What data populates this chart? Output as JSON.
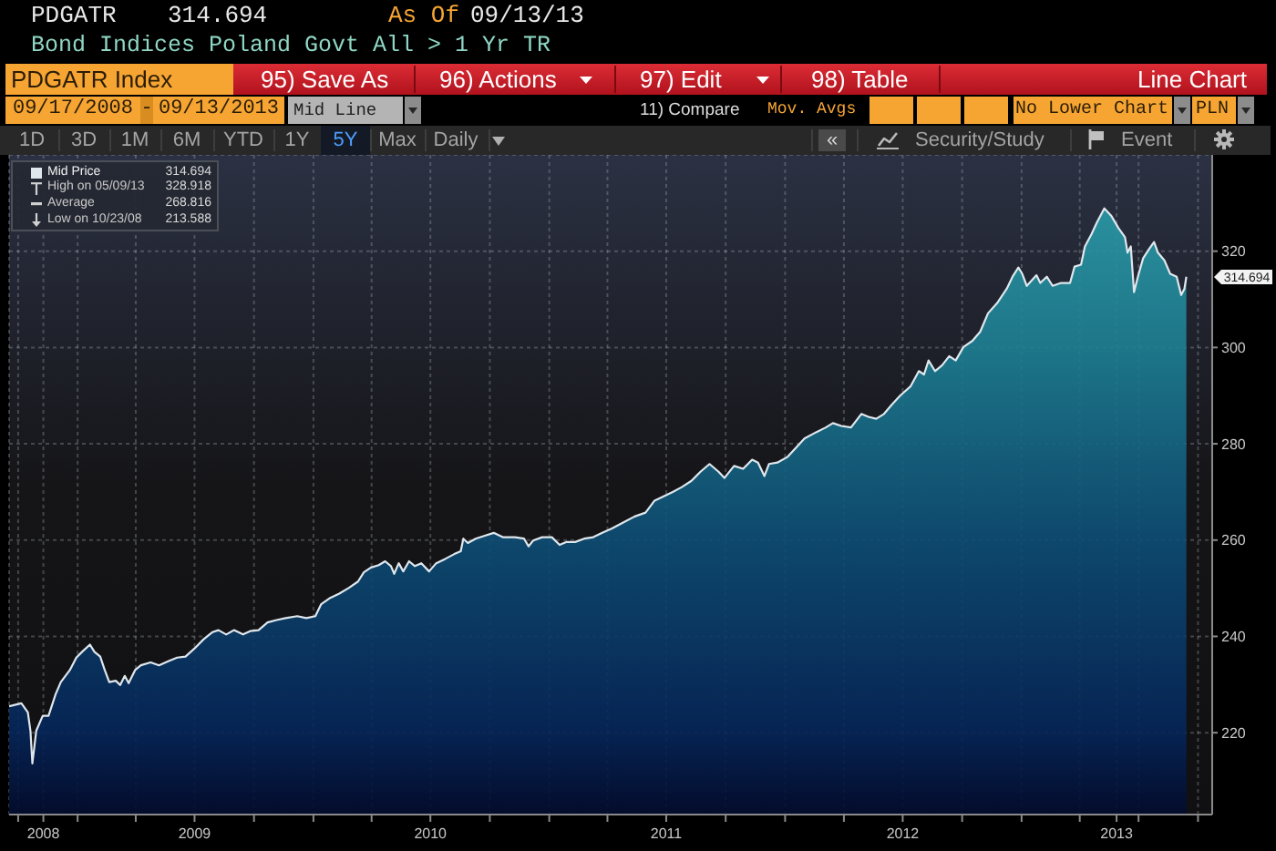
{
  "chart_data": {
    "type": "area",
    "title": "Bond Indices Poland Govt All > 1 Yr TR",
    "x": [
      "2008-09-17",
      "2008-10-06",
      "2008-10-16",
      "2008-10-20",
      "2008-10-23",
      "2008-10-29",
      "2008-11-08",
      "2008-11-17",
      "2008-11-28",
      "2008-12-06",
      "2008-12-20",
      "2008-12-30",
      "2009-01-08",
      "2009-01-20",
      "2009-01-27",
      "2009-02-05",
      "2009-02-12",
      "2009-02-19",
      "2009-03-01",
      "2009-03-08",
      "2009-03-15",
      "2009-03-21",
      "2009-03-31",
      "2009-04-09",
      "2009-04-24",
      "2009-05-07",
      "2009-05-22",
      "2009-06-04",
      "2009-06-17",
      "2009-07-01",
      "2009-07-15",
      "2009-07-29",
      "2009-08-07",
      "2009-08-19",
      "2009-08-31",
      "2009-09-14",
      "2009-09-25",
      "2009-10-08",
      "2009-10-22",
      "2009-11-05",
      "2009-11-19",
      "2009-12-07",
      "2009-12-21",
      "2010-01-04",
      "2010-01-13",
      "2010-01-27",
      "2010-02-10",
      "2010-02-25",
      "2010-03-11",
      "2010-03-20",
      "2010-03-31",
      "2010-04-12",
      "2010-04-22",
      "2010-05-01",
      "2010-05-06",
      "2010-05-13",
      "2010-05-20",
      "2010-05-29",
      "2010-06-07",
      "2010-06-17",
      "2010-06-29",
      "2010-07-10",
      "2010-07-24",
      "2010-08-07",
      "2010-08-17",
      "2010-08-21",
      "2010-08-28",
      "2010-09-09",
      "2010-09-23",
      "2010-10-07",
      "2010-10-21",
      "2010-11-09",
      "2010-11-23",
      "2010-11-30",
      "2010-12-07",
      "2010-12-21",
      "2011-01-05",
      "2011-01-17",
      "2011-01-27",
      "2011-02-10",
      "2011-02-24",
      "2011-03-10",
      "2011-03-24",
      "2011-04-08",
      "2011-04-26",
      "2011-05-13",
      "2011-05-30",
      "2011-06-13",
      "2011-06-27",
      "2011-07-11",
      "2011-07-25",
      "2011-08-09",
      "2011-08-23",
      "2011-09-06",
      "2011-09-20",
      "2011-09-29",
      "2011-10-14",
      "2011-10-28",
      "2011-11-11",
      "2011-11-20",
      "2011-11-30",
      "2011-12-07",
      "2011-12-20",
      "2012-01-05",
      "2012-01-18",
      "2012-01-31",
      "2012-02-18",
      "2012-03-04",
      "2012-03-15",
      "2012-03-28",
      "2012-04-12",
      "2012-04-28",
      "2012-05-09",
      "2012-05-21",
      "2012-06-02",
      "2012-06-14",
      "2012-06-27",
      "2012-07-13",
      "2012-07-26",
      "2012-08-03",
      "2012-08-10",
      "2012-08-20",
      "2012-08-31",
      "2012-09-11",
      "2012-09-21",
      "2012-10-03",
      "2012-10-17",
      "2012-10-29",
      "2012-11-10",
      "2012-11-24",
      "2012-12-09",
      "2012-12-18",
      "2012-12-27",
      "2013-01-02",
      "2013-01-09",
      "2013-01-17",
      "2013-01-24",
      "2013-01-30",
      "2013-02-09",
      "2013-02-18",
      "2013-03-03",
      "2013-03-17",
      "2013-03-24",
      "2013-04-03",
      "2013-04-09",
      "2013-04-19",
      "2013-04-28",
      "2013-05-09",
      "2013-05-20",
      "2013-05-31",
      "2013-06-10",
      "2013-06-14",
      "2013-06-19",
      "2013-06-24",
      "2013-06-30",
      "2013-07-08",
      "2013-07-17",
      "2013-07-25",
      "2013-07-31",
      "2013-08-10",
      "2013-08-19",
      "2013-08-29",
      "2013-09-05",
      "2013-09-10",
      "2013-09-13"
    ],
    "series": [
      {
        "name": "Mid Price",
        "color": "#dfe7ec",
        "values": [
          225.5,
          226.1,
          224.2,
          220.4,
          213.6,
          220.4,
          223.5,
          223.5,
          228.0,
          230.5,
          233.0,
          235.6,
          236.8,
          238.3,
          236.8,
          235.8,
          233.0,
          230.5,
          230.8,
          229.9,
          231.8,
          230.3,
          233.0,
          234.0,
          234.6,
          234.0,
          234.9,
          235.6,
          235.8,
          237.5,
          239.4,
          240.9,
          241.3,
          240.4,
          241.3,
          240.4,
          241.1,
          241.3,
          242.9,
          243.4,
          243.8,
          244.2,
          243.8,
          244.2,
          246.7,
          248.0,
          248.9,
          250.1,
          251.4,
          253.3,
          254.3,
          254.8,
          255.6,
          254.6,
          253.0,
          255.2,
          253.5,
          255.6,
          254.6,
          255.2,
          253.5,
          255.2,
          256.1,
          257.1,
          257.7,
          260.3,
          259.4,
          260.3,
          260.9,
          261.5,
          260.6,
          260.6,
          260.3,
          258.7,
          259.9,
          260.6,
          260.6,
          259.0,
          259.6,
          259.6,
          260.3,
          260.6,
          261.5,
          262.4,
          263.7,
          264.9,
          265.7,
          268.2,
          269.1,
          270.0,
          271.0,
          272.3,
          274.2,
          275.8,
          274.2,
          272.9,
          275.4,
          274.8,
          276.7,
          276.1,
          273.3,
          275.8,
          276.1,
          277.3,
          279.2,
          281.1,
          282.4,
          283.4,
          284.3,
          283.7,
          283.4,
          286.2,
          285.6,
          285.2,
          286.2,
          288.1,
          290.0,
          291.9,
          295.1,
          294.4,
          297.3,
          295.1,
          296.3,
          298.2,
          297.3,
          300.1,
          301.4,
          303.3,
          307.1,
          309.2,
          312.2,
          314.7,
          316.6,
          315.3,
          312.8,
          314.0,
          315.0,
          313.4,
          314.7,
          312.8,
          313.4,
          313.4,
          316.8,
          317.2,
          321.0,
          323.5,
          326.1,
          328.9,
          327.3,
          324.8,
          322.9,
          319.7,
          321.0,
          311.5,
          314.7,
          318.5,
          320.4,
          321.9,
          319.7,
          318.1,
          315.3,
          314.7,
          310.9,
          312.2,
          314.7
        ]
      }
    ],
    "xlim": [
      "2008-09-17",
      "2013-10-23"
    ],
    "xticks": [
      {
        "value": "2008-10-01",
        "label": null
      },
      {
        "value": "2008-11-09",
        "label": "2008"
      },
      {
        "value": "2009-01-01",
        "label": null
      },
      {
        "value": "2009-04-01",
        "label": null
      },
      {
        "value": "2009-07-01",
        "label": "2009"
      },
      {
        "value": "2009-10-01",
        "label": null
      },
      {
        "value": "2010-01-01",
        "label": null
      },
      {
        "value": "2010-04-01",
        "label": null
      },
      {
        "value": "2010-07-01",
        "label": "2010"
      },
      {
        "value": "2010-10-01",
        "label": null
      },
      {
        "value": "2011-01-01",
        "label": null
      },
      {
        "value": "2011-04-01",
        "label": null
      },
      {
        "value": "2011-07-01",
        "label": "2011"
      },
      {
        "value": "2011-10-01",
        "label": null
      },
      {
        "value": "2012-01-01",
        "label": null
      },
      {
        "value": "2012-04-01",
        "label": null
      },
      {
        "value": "2012-07-01",
        "label": "2012"
      },
      {
        "value": "2012-10-01",
        "label": null
      },
      {
        "value": "2013-01-01",
        "label": null
      },
      {
        "value": "2013-04-01",
        "label": null
      },
      {
        "value": "2013-05-28",
        "label": "2013"
      },
      {
        "value": "2013-07-01",
        "label": null
      },
      {
        "value": "2013-10-01",
        "label": null
      }
    ],
    "ylim": [
      203,
      340
    ],
    "yticks": [
      220,
      240,
      260,
      280,
      300,
      320
    ],
    "grid": true,
    "legend": "top left",
    "annotations": [
      "PDGATR",
      "314.694",
      "As Of",
      "09/13/13",
      "PDGATR Index",
      "95) Save As",
      "96) Actions",
      "97) Edit",
      "98) Table",
      "Line Chart",
      "09/17/2008",
      "-",
      "09/13/2013",
      "Mid Line",
      "11) Compare",
      "Mov. Avgs",
      "No Lower Chart",
      "PLN",
      "1D",
      "3D",
      "1M",
      "6M",
      "YTD",
      "1Y",
      "5Y",
      "Max",
      "Daily",
      "«",
      "Security/Study",
      "Event",
      "314.694",
      "High on 05/09/13",
      "328.918",
      "Average",
      "268.816",
      "Low on 10/23/08",
      "213.588",
      "314.694"
    ]
  }
}
